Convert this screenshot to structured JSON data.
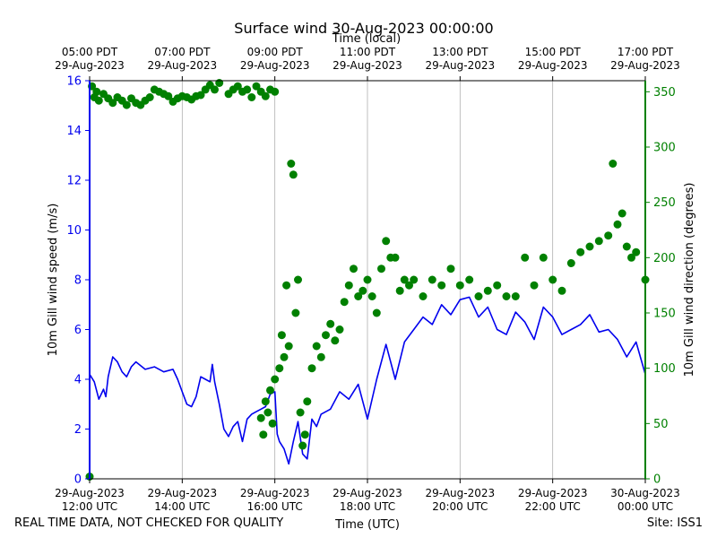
{
  "chart_data": {
    "type": "line+scatter",
    "title": "Surface wind 30-Aug-2023 00:00:00",
    "top_axis_title": "Time (local)",
    "xlabel": "Time (UTC)",
    "footer_left": "REAL TIME DATA, NOT CHECKED FOR QUALITY",
    "footer_right": "Site: ISS1",
    "x_range_hours": [
      0,
      12
    ],
    "bottom_ticks": [
      {
        "hour": 0,
        "line1": "29-Aug-2023",
        "line2": "12:00 UTC"
      },
      {
        "hour": 2,
        "line1": "29-Aug-2023",
        "line2": "14:00 UTC"
      },
      {
        "hour": 4,
        "line1": "29-Aug-2023",
        "line2": "16:00 UTC"
      },
      {
        "hour": 6,
        "line1": "29-Aug-2023",
        "line2": "18:00 UTC"
      },
      {
        "hour": 8,
        "line1": "29-Aug-2023",
        "line2": "20:00 UTC"
      },
      {
        "hour": 10,
        "line1": "29-Aug-2023",
        "line2": "22:00 UTC"
      },
      {
        "hour": 12,
        "line1": "30-Aug-2023",
        "line2": "00:00 UTC"
      }
    ],
    "top_ticks": [
      {
        "hour": 0,
        "line1": "05:00 PDT",
        "line2": "29-Aug-2023"
      },
      {
        "hour": 2,
        "line1": "07:00 PDT",
        "line2": "29-Aug-2023"
      },
      {
        "hour": 4,
        "line1": "09:00 PDT",
        "line2": "29-Aug-2023"
      },
      {
        "hour": 6,
        "line1": "11:00 PDT",
        "line2": "29-Aug-2023"
      },
      {
        "hour": 8,
        "line1": "13:00 PDT",
        "line2": "29-Aug-2023"
      },
      {
        "hour": 10,
        "line1": "15:00 PDT",
        "line2": "29-Aug-2023"
      },
      {
        "hour": 12,
        "line1": "17:00 PDT",
        "line2": "29-Aug-2023"
      }
    ],
    "left_axis": {
      "label": "10m Gill wind speed (m/s)",
      "color": "#0000ee",
      "ylim": [
        0,
        16
      ],
      "ticks": [
        0,
        2,
        4,
        6,
        8,
        10,
        12,
        14,
        16
      ]
    },
    "right_axis": {
      "label": "10m Gill wind direction (degrees)",
      "color": "#008000",
      "ylim": [
        0,
        360
      ],
      "ticks": [
        0,
        50,
        100,
        150,
        200,
        250,
        300,
        350
      ]
    },
    "speed_series": {
      "name": "Wind speed",
      "units": "m/s",
      "hours": [
        0,
        0.1,
        0.2,
        0.3,
        0.35,
        0.4,
        0.5,
        0.6,
        0.7,
        0.8,
        0.9,
        1.0,
        1.2,
        1.4,
        1.6,
        1.8,
        1.9,
        2.0,
        2.1,
        2.2,
        2.3,
        2.4,
        2.5,
        2.6,
        2.65,
        2.7,
        2.8,
        2.9,
        3.0,
        3.1,
        3.2,
        3.3,
        3.4,
        3.5,
        3.6,
        3.7,
        3.8,
        3.9,
        4.0,
        4.05,
        4.1,
        4.2,
        4.3,
        4.4,
        4.5,
        4.6,
        4.7,
        4.8,
        4.9,
        5.0,
        5.2,
        5.4,
        5.6,
        5.8,
        6.0,
        6.2,
        6.4,
        6.6,
        6.8,
        7.0,
        7.2,
        7.4,
        7.6,
        7.8,
        8.0,
        8.2,
        8.4,
        8.6,
        8.8,
        9.0,
        9.2,
        9.4,
        9.6,
        9.8,
        10.0,
        10.2,
        10.4,
        10.6,
        10.8,
        11.0,
        11.2,
        11.4,
        11.6,
        11.8,
        12.0
      ],
      "values": [
        4.2,
        3.9,
        3.2,
        3.6,
        3.3,
        4.1,
        4.9,
        4.7,
        4.3,
        4.1,
        4.5,
        4.7,
        4.4,
        4.5,
        4.3,
        4.4,
        4.0,
        3.5,
        3.0,
        2.9,
        3.3,
        4.1,
        4.0,
        3.9,
        4.6,
        3.9,
        3.0,
        2.0,
        1.7,
        2.1,
        2.3,
        1.5,
        2.4,
        2.6,
        2.7,
        2.8,
        2.9,
        3.4,
        3.5,
        1.8,
        1.5,
        1.2,
        0.6,
        1.5,
        2.3,
        1.0,
        0.8,
        2.4,
        2.1,
        2.6,
        2.8,
        3.5,
        3.2,
        3.8,
        2.4,
        4.0,
        5.4,
        4.0,
        5.5,
        6.0,
        6.5,
        6.2,
        7.0,
        6.6,
        7.2,
        7.3,
        6.5,
        6.9,
        6.0,
        5.8,
        6.7,
        6.3,
        5.6,
        6.9,
        6.5,
        5.8,
        6.0,
        6.2,
        6.6,
        5.9,
        6.0,
        5.6,
        4.9,
        5.5,
        4.2
      ]
    },
    "direction_series": {
      "name": "Wind direction",
      "units": "degrees",
      "hours": [
        0.0,
        0.05,
        0.1,
        0.15,
        0.2,
        0.3,
        0.4,
        0.5,
        0.6,
        0.7,
        0.8,
        0.9,
        1.0,
        1.1,
        1.2,
        1.3,
        1.4,
        1.5,
        1.6,
        1.7,
        1.8,
        1.9,
        2.0,
        2.1,
        2.2,
        2.3,
        2.4,
        2.5,
        2.6,
        2.7,
        2.8,
        3.0,
        3.1,
        3.2,
        3.3,
        3.4,
        3.5,
        3.6,
        3.7,
        3.8,
        3.9,
        4.0,
        3.7,
        3.75,
        3.8,
        3.85,
        3.9,
        3.95,
        4.0,
        4.1,
        4.15,
        4.2,
        4.25,
        4.3,
        4.35,
        4.4,
        4.45,
        4.5,
        4.55,
        4.6,
        4.65,
        4.7,
        4.8,
        4.9,
        5.0,
        5.1,
        5.2,
        5.3,
        5.4,
        5.5,
        5.6,
        5.7,
        5.8,
        5.9,
        6.0,
        6.1,
        6.2,
        6.3,
        6.4,
        6.5,
        6.6,
        6.7,
        6.8,
        6.9,
        7.0,
        7.2,
        7.4,
        7.6,
        7.8,
        8.0,
        8.2,
        8.4,
        8.6,
        8.8,
        9.0,
        9.2,
        9.4,
        9.6,
        9.8,
        10.0,
        10.2,
        10.4,
        10.6,
        10.8,
        11.0,
        11.2,
        11.3,
        11.4,
        11.5,
        11.6,
        11.7,
        11.8,
        12.0
      ],
      "values": [
        2,
        355,
        345,
        350,
        342,
        348,
        344,
        340,
        345,
        342,
        338,
        344,
        340,
        338,
        342,
        345,
        352,
        350,
        348,
        346,
        341,
        344,
        346,
        345,
        343,
        346,
        347,
        352,
        356,
        352,
        358,
        348,
        352,
        355,
        350,
        352,
        345,
        355,
        350,
        346,
        352,
        350,
        55,
        40,
        70,
        60,
        80,
        50,
        90,
        100,
        130,
        110,
        175,
        120,
        285,
        275,
        150,
        180,
        60,
        30,
        40,
        70,
        100,
        120,
        110,
        130,
        140,
        125,
        135,
        160,
        175,
        190,
        165,
        170,
        180,
        165,
        150,
        190,
        215,
        200,
        200,
        170,
        180,
        175,
        180,
        165,
        180,
        175,
        190,
        175,
        180,
        165,
        170,
        175,
        165,
        165,
        200,
        175,
        200,
        180,
        170,
        195,
        205,
        210,
        215,
        220,
        285,
        230,
        240,
        210,
        200,
        205,
        180
      ]
    }
  }
}
